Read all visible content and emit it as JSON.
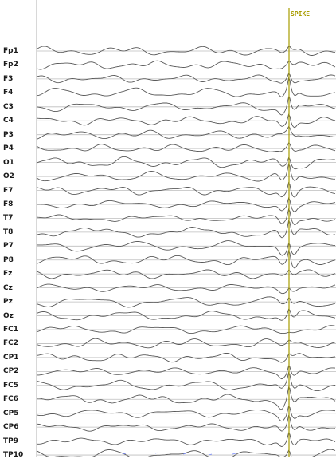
{
  "event_marker": {
    "label": "SPIKE",
    "color": "#a89c00"
  },
  "colors": {
    "trace": "#5a5a5a",
    "baseline": "#bdbdbd",
    "label_text": "#1a1a1a",
    "background": "#ffffff",
    "blue_artifact": "#7a8cff"
  },
  "channels": [
    {
      "name": "Fp1",
      "spike": 0.3
    },
    {
      "name": "Fp2",
      "spike": 0.3
    },
    {
      "name": "F3",
      "spike": 0.5
    },
    {
      "name": "F4",
      "spike": 1.0
    },
    {
      "name": "C3",
      "spike": 0.9
    },
    {
      "name": "C4",
      "spike": 0.8
    },
    {
      "name": "P3",
      "spike": 0.4
    },
    {
      "name": "P4",
      "spike": 0.4
    },
    {
      "name": "O1",
      "spike": 0.6
    },
    {
      "name": "O2",
      "spike": 1.0
    },
    {
      "name": "F7",
      "spike": 0.9
    },
    {
      "name": "F8",
      "spike": 0.8
    },
    {
      "name": "T7",
      "spike": 0.9
    },
    {
      "name": "T8",
      "spike": 1.0
    },
    {
      "name": "P7",
      "spike": 0.8
    },
    {
      "name": "P8",
      "spike": 1.0
    },
    {
      "name": "Fz",
      "spike": 0.3
    },
    {
      "name": "Cz",
      "spike": 0.3
    },
    {
      "name": "Pz",
      "spike": 0.4
    },
    {
      "name": "Oz",
      "spike": 0.6
    },
    {
      "name": "FC1",
      "spike": 0.05
    },
    {
      "name": "FC2",
      "spike": 0.2
    },
    {
      "name": "CP1",
      "spike": 0.3
    },
    {
      "name": "CP2",
      "spike": 0.7
    },
    {
      "name": "FC5",
      "spike": 0.9
    },
    {
      "name": "FC6",
      "spike": 1.0
    },
    {
      "name": "CP5",
      "spike": 0.8
    },
    {
      "name": "CP6",
      "spike": 0.9
    },
    {
      "name": "TP9",
      "spike": 0.8
    },
    {
      "name": "TP10",
      "spike": 0.5
    }
  ]
}
